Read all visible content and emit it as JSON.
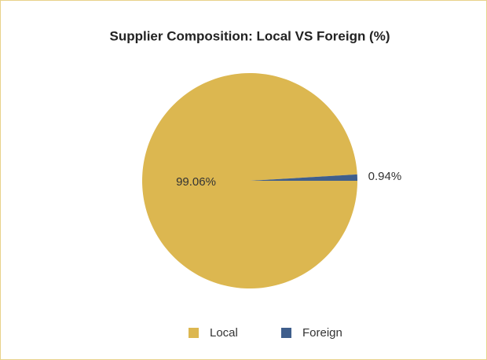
{
  "chart_data": {
    "type": "pie",
    "title": "Supplier Composition: Local VS Foreign (%)",
    "categories": [
      "Local",
      "Foreign"
    ],
    "values": [
      99.06,
      0.94
    ],
    "value_labels": [
      "99.06%",
      "0.94%"
    ],
    "colors": [
      "#dcb750",
      "#3f5e8c"
    ],
    "legend": "bottom"
  }
}
